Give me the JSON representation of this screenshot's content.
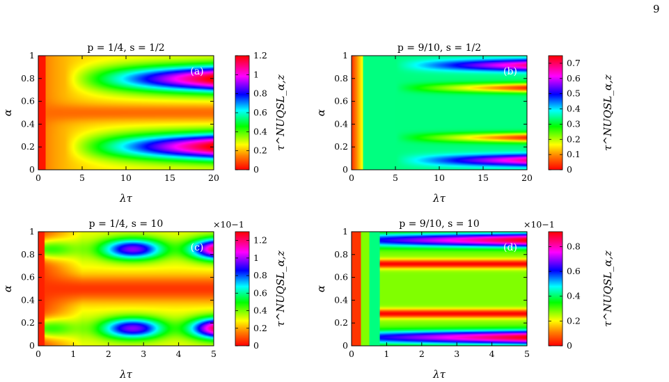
{
  "page": {
    "number": "9"
  },
  "chart_data": [
    {
      "id": "a",
      "type": "heatmap",
      "title": "p = 1/4, s = 1/2",
      "panel_label": "(a)",
      "xlabel": "λτ",
      "ylabel": "α",
      "xlim": [
        0,
        20
      ],
      "ylim": [
        0,
        1
      ],
      "x_ticks": [
        "0",
        "5",
        "10",
        "15",
        "20"
      ],
      "y_ticks": [
        "0",
        "0.2",
        "0.4",
        "0.6",
        "0.8",
        "1"
      ],
      "colorbar": {
        "label": "τ^NUQSL_α,z",
        "range": [
          0,
          1.2
        ],
        "multiplier": "",
        "ticks": [
          "0",
          "0.2",
          "0.4",
          "0.6",
          "0.8",
          "1",
          "1.2"
        ]
      }
    },
    {
      "id": "b",
      "type": "heatmap",
      "title": "p = 9/10, s = 1/2",
      "panel_label": "(b)",
      "xlabel": "λτ",
      "ylabel": "α",
      "xlim": [
        0,
        20
      ],
      "ylim": [
        0,
        1
      ],
      "x_ticks": [
        "0",
        "5",
        "10",
        "15",
        "20"
      ],
      "y_ticks": [
        "0",
        "0.2",
        "0.4",
        "0.6",
        "0.8",
        "1"
      ],
      "colorbar": {
        "label": "τ^NUQSL_α,z",
        "range": [
          0,
          0.75
        ],
        "multiplier": "",
        "ticks": [
          "0",
          "0.1",
          "0.2",
          "0.3",
          "0.4",
          "0.5",
          "0.6",
          "0.7"
        ]
      }
    },
    {
      "id": "c",
      "type": "heatmap",
      "title": "p = 1/4, s = 10",
      "panel_label": "(c)",
      "xlabel": "λτ",
      "ylabel": "α",
      "xlim": [
        0,
        5
      ],
      "ylim": [
        0,
        1
      ],
      "x_ticks": [
        "0",
        "1",
        "2",
        "3",
        "4",
        "5"
      ],
      "y_ticks": [
        "0",
        "0.2",
        "0.4",
        "0.6",
        "0.8",
        "1"
      ],
      "colorbar": {
        "label": "τ^NUQSL_α,z",
        "range": [
          0,
          1.3
        ],
        "multiplier": "×10−1",
        "ticks": [
          "0",
          "0.2",
          "0.4",
          "0.6",
          "0.8",
          "1",
          "1.2"
        ]
      }
    },
    {
      "id": "d",
      "type": "heatmap",
      "title": "p = 9/10, s = 10",
      "panel_label": "(d)",
      "xlabel": "λτ",
      "ylabel": "α",
      "xlim": [
        0,
        5
      ],
      "ylim": [
        0,
        1
      ],
      "x_ticks": [
        "0",
        "1",
        "2",
        "3",
        "4",
        "5"
      ],
      "y_ticks": [
        "0",
        "0.2",
        "0.4",
        "0.6",
        "0.8",
        "1"
      ],
      "colorbar": {
        "label": "τ^NUQSL_α,z",
        "range": [
          0,
          0.92
        ],
        "multiplier": "×10−1",
        "ticks": [
          "0",
          "0.2",
          "0.4",
          "0.6",
          "0.8"
        ]
      }
    }
  ]
}
